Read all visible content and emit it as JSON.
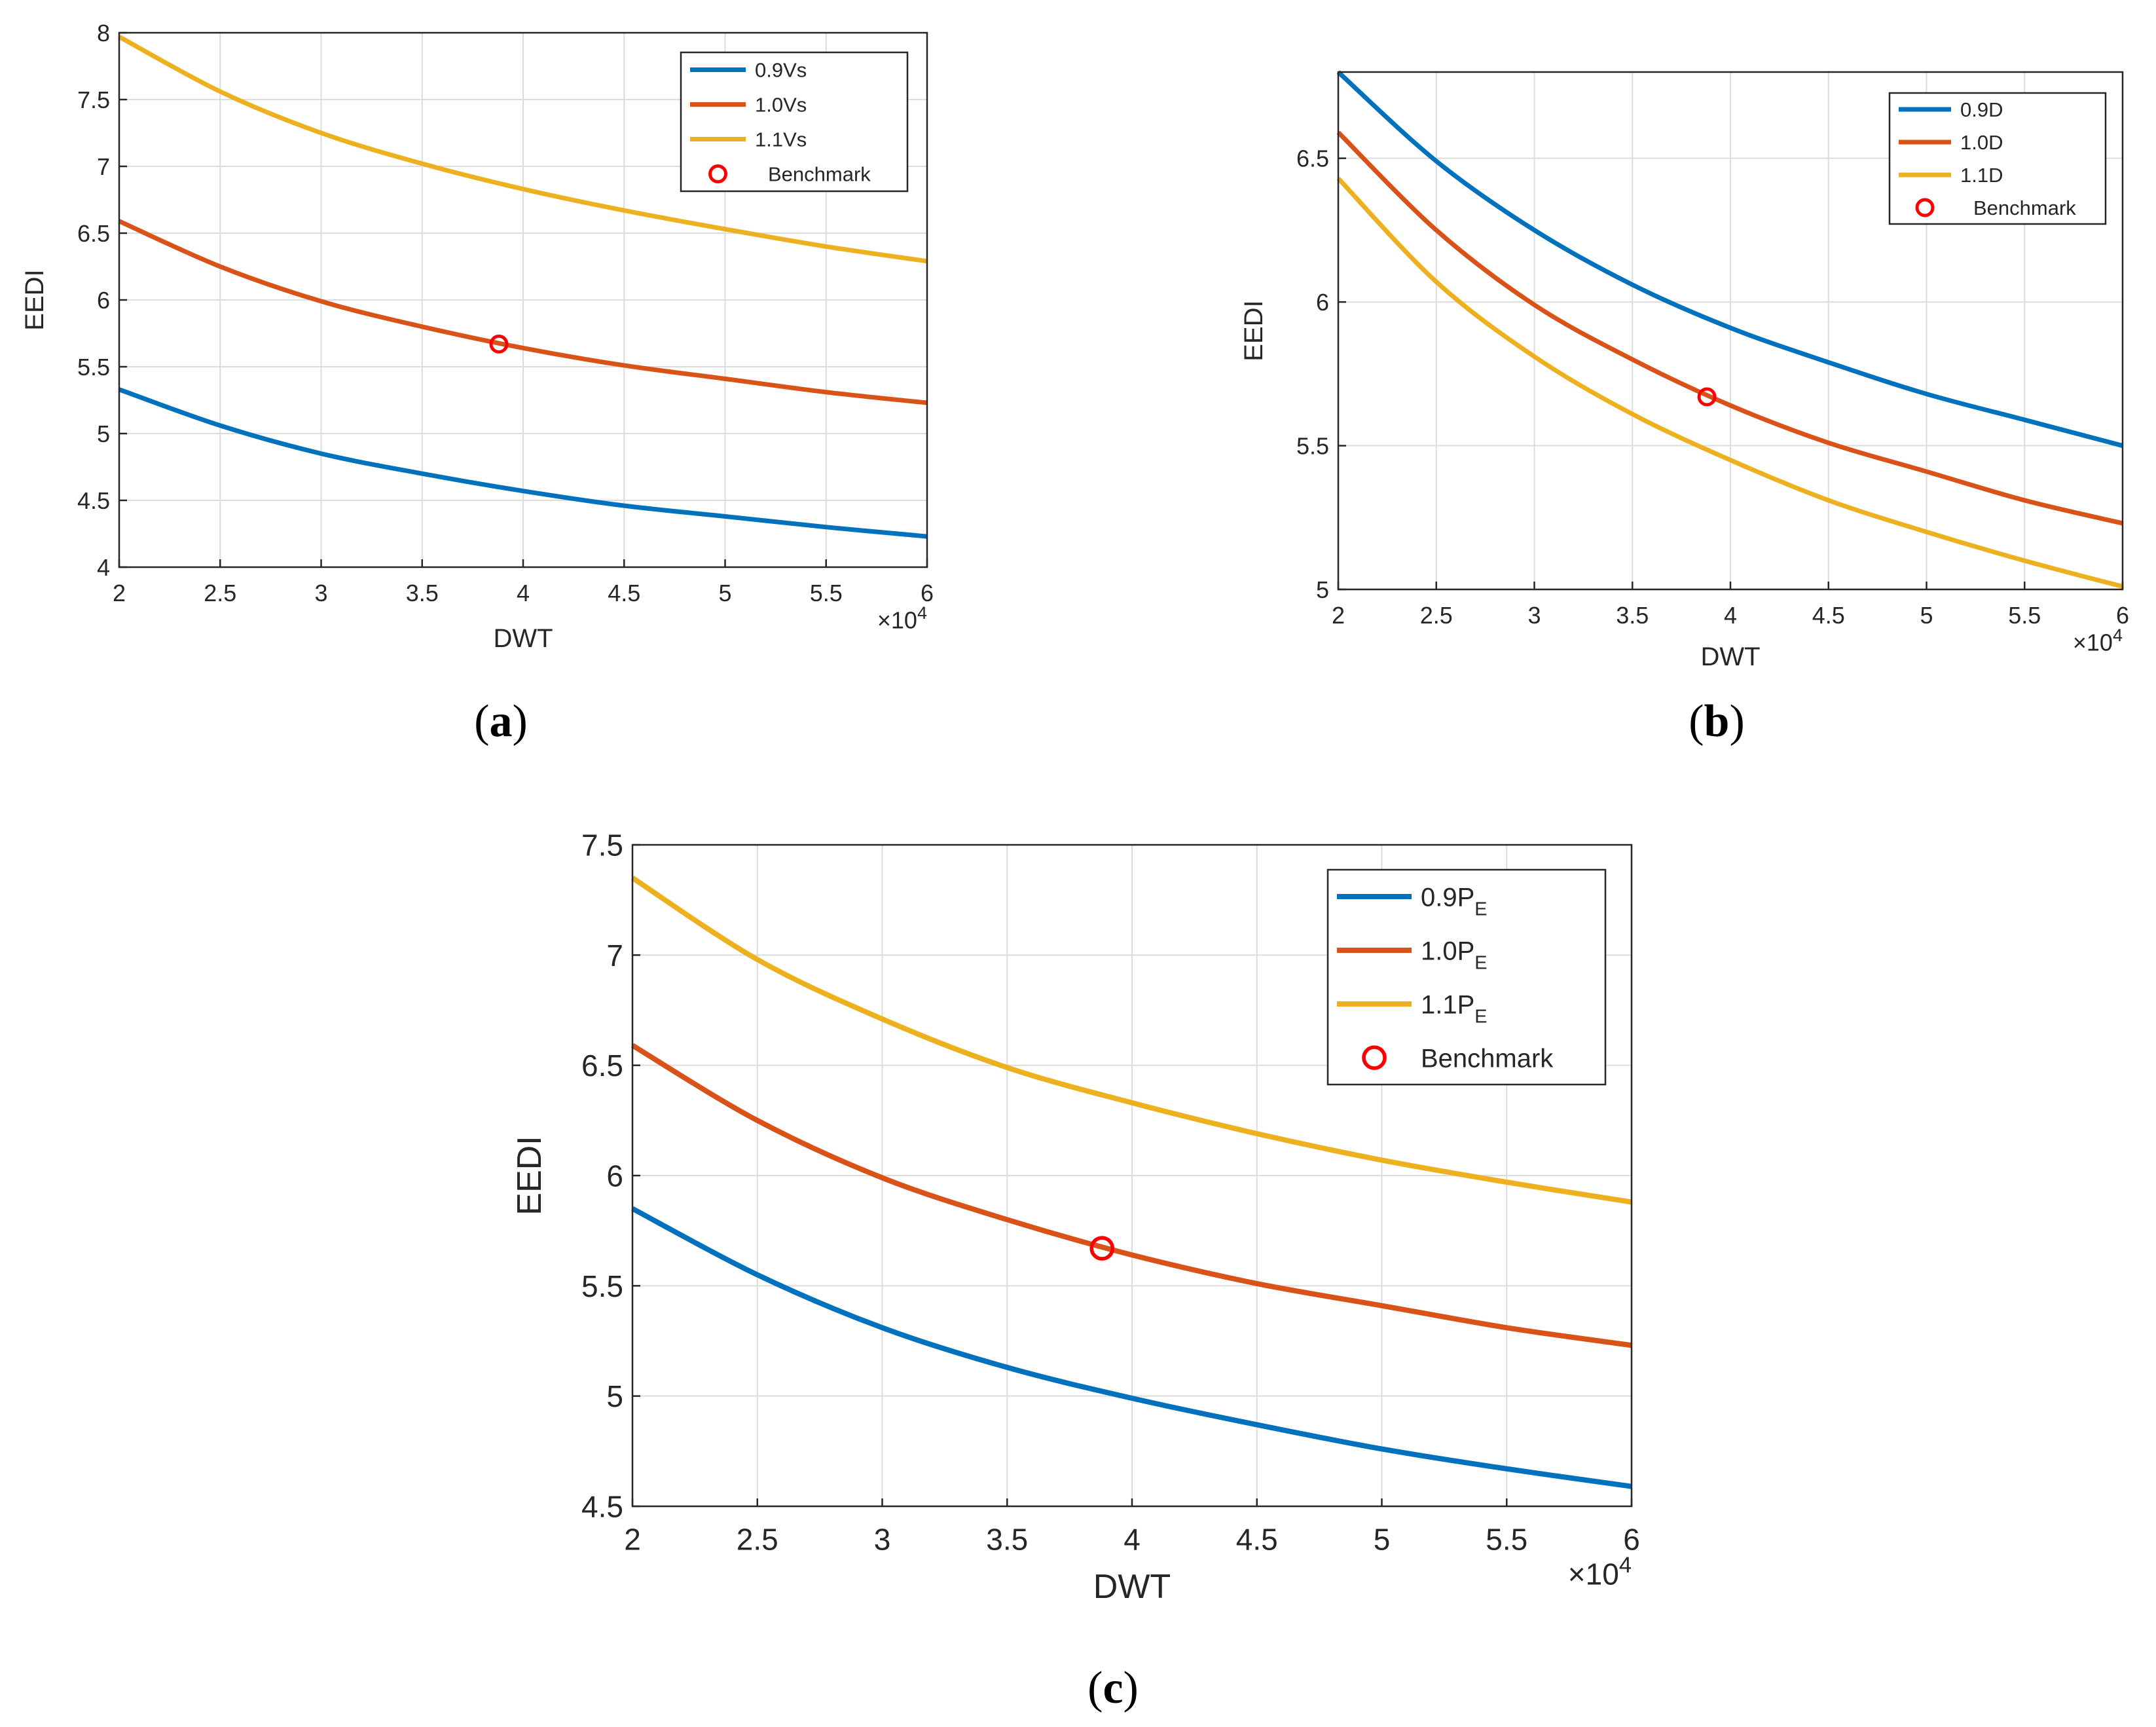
{
  "chart_data": [
    {
      "type": "line",
      "panel_label": "(a)",
      "panel_letter": "a",
      "xlabel": "DWT",
      "ylabel": "EEDI",
      "x_multiplier": {
        "base": "×10",
        "exponent": "4"
      },
      "xlim": [
        2,
        6
      ],
      "ylim": [
        4,
        8
      ],
      "xticks": [
        2,
        2.5,
        3,
        3.5,
        4,
        4.5,
        5,
        5.5,
        6
      ],
      "yticks": [
        4,
        4.5,
        5,
        5.5,
        6,
        6.5,
        7,
        7.5,
        8
      ],
      "x": [
        2,
        2.5,
        3,
        3.5,
        4,
        4.5,
        5,
        5.5,
        6
      ],
      "grid": true,
      "legend_position": "top-right",
      "series": [
        {
          "name": "0.9Vs",
          "label": "0.9Vs",
          "sub": "",
          "color": "#0072BD",
          "values": [
            5.33,
            5.06,
            4.85,
            4.7,
            4.57,
            4.46,
            4.38,
            4.3,
            4.23
          ]
        },
        {
          "name": "1.0Vs",
          "label": "1.0Vs",
          "sub": "",
          "color": "#D95319",
          "values": [
            6.59,
            6.25,
            5.99,
            5.8,
            5.64,
            5.51,
            5.41,
            5.31,
            5.23
          ]
        },
        {
          "name": "1.1Vs",
          "label": "1.1Vs",
          "sub": "",
          "color": "#EDB120",
          "values": [
            7.97,
            7.56,
            7.25,
            7.02,
            6.83,
            6.67,
            6.53,
            6.4,
            6.29
          ]
        }
      ],
      "benchmark": {
        "label": "Benchmark",
        "x": 3.88,
        "y": 5.67,
        "color": "#FF0000"
      }
    },
    {
      "type": "line",
      "panel_label": "(b)",
      "panel_letter": "b",
      "xlabel": "DWT",
      "ylabel": "EEDI",
      "x_multiplier": {
        "base": "×10",
        "exponent": "4"
      },
      "xlim": [
        2,
        6
      ],
      "ylim": [
        5,
        6.8
      ],
      "xticks": [
        2,
        2.5,
        3,
        3.5,
        4,
        4.5,
        5,
        5.5,
        6
      ],
      "yticks": [
        5,
        5.5,
        6,
        6.5
      ],
      "x": [
        2,
        2.5,
        3,
        3.5,
        4,
        4.5,
        5,
        5.5,
        6
      ],
      "grid": true,
      "legend_position": "top-right",
      "series": [
        {
          "name": "0.9D",
          "label": "0.9D",
          "sub": "",
          "color": "#0072BD",
          "values": [
            6.8,
            6.49,
            6.25,
            6.06,
            5.91,
            5.79,
            5.68,
            5.59,
            5.5
          ]
        },
        {
          "name": "1.0D",
          "label": "1.0D",
          "sub": "",
          "color": "#D95319",
          "values": [
            6.59,
            6.25,
            5.99,
            5.8,
            5.64,
            5.51,
            5.41,
            5.31,
            5.23
          ]
        },
        {
          "name": "1.1D",
          "label": "1.1D",
          "sub": "",
          "color": "#EDB120",
          "values": [
            6.43,
            6.07,
            5.81,
            5.61,
            5.45,
            5.31,
            5.2,
            5.1,
            5.01
          ]
        }
      ],
      "benchmark": {
        "label": "Benchmark",
        "x": 3.88,
        "y": 5.67,
        "color": "#FF0000"
      }
    },
    {
      "type": "line",
      "panel_label": "(c)",
      "panel_letter": "c",
      "xlabel": "DWT",
      "ylabel": "EEDI",
      "x_multiplier": {
        "base": "×10",
        "exponent": "4"
      },
      "xlim": [
        2,
        6
      ],
      "ylim": [
        4.5,
        7.5
      ],
      "xticks": [
        2,
        2.5,
        3,
        3.5,
        4,
        4.5,
        5,
        5.5,
        6
      ],
      "yticks": [
        4.5,
        5,
        5.5,
        6,
        6.5,
        7,
        7.5
      ],
      "x": [
        2,
        2.5,
        3,
        3.5,
        4,
        4.5,
        5,
        5.5,
        6
      ],
      "grid": true,
      "legend_position": "top-right",
      "series": [
        {
          "name": "0.9PE",
          "label": "0.9P",
          "sub": "E",
          "color": "#0072BD",
          "values": [
            5.85,
            5.55,
            5.31,
            5.13,
            4.99,
            4.87,
            4.76,
            4.67,
            4.59
          ]
        },
        {
          "name": "1.0PE",
          "label": "1.0P",
          "sub": "E",
          "color": "#D95319",
          "values": [
            6.59,
            6.25,
            5.99,
            5.8,
            5.64,
            5.51,
            5.41,
            5.31,
            5.23
          ]
        },
        {
          "name": "1.1PE",
          "label": "1.1P",
          "sub": "E",
          "color": "#EDB120",
          "values": [
            7.35,
            6.98,
            6.71,
            6.49,
            6.33,
            6.19,
            6.07,
            5.97,
            5.88
          ]
        }
      ],
      "benchmark": {
        "label": "Benchmark",
        "x": 3.88,
        "y": 5.67,
        "color": "#FF0000"
      }
    }
  ]
}
